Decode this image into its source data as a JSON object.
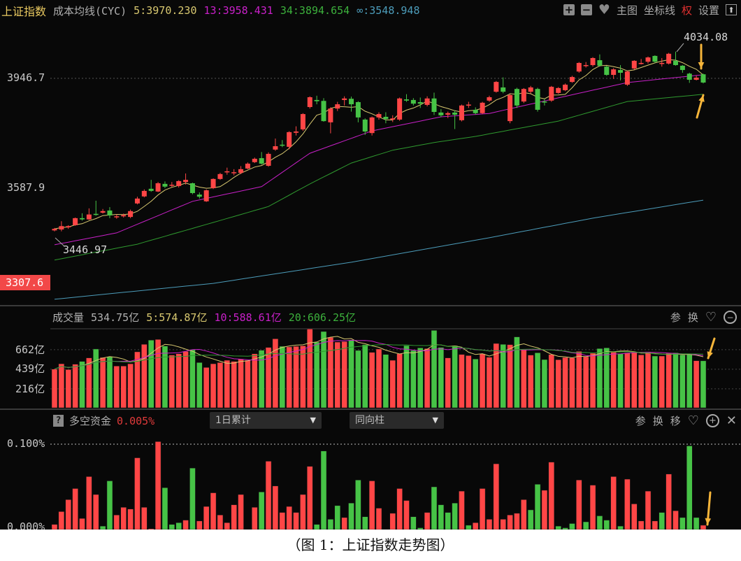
{
  "header": {
    "title": "上证指数",
    "indicator": "成本均线(CYC)",
    "ma5": "5:3970.230",
    "ma13": "13:3958.431",
    "ma34": "34:3894.654",
    "ma_inf": "∞:3548.948",
    "buttons": {
      "zoom_in": "+",
      "zoom_out": "−",
      "main_chart": "主图",
      "crosshair": "坐标线",
      "rights": "权",
      "settings": "设置"
    }
  },
  "price_panel": {
    "axis_labels": [
      "3946.7",
      "3587.9",
      "3307.6"
    ],
    "high_label": "4034.08",
    "low_label": "3446.97"
  },
  "volume_panel": {
    "title": "成交量",
    "current": "534.75亿",
    "ma5": "5:574.87亿",
    "ma10": "10:588.61亿",
    "ma20": "20:606.25亿",
    "axis_labels": [
      "662亿",
      "439亿",
      "216亿"
    ],
    "buttons": {
      "params": "参",
      "switch": "换"
    }
  },
  "fund_panel": {
    "help": "?",
    "title": "多空资金",
    "value": "0.005%",
    "period_select": "1日累计",
    "style_select": "同向柱",
    "axis_labels": [
      "0.100%",
      "0.000%"
    ],
    "buttons": {
      "params": "参",
      "switch": "换",
      "move": "移"
    }
  },
  "caption": "（图 1：上证指数走势图）",
  "colors": {
    "up": "#ff4646",
    "down": "#46c346",
    "ma5": "#d8c870",
    "ma13": "#c820c8",
    "ma34": "#2f9a2f",
    "ma_inf": "#4c9cba",
    "vol_ma5": "#d8c870",
    "vol_ma10": "#c820c8",
    "vol_ma20": "#2f9a2f",
    "arrow": "#f6b53a",
    "rights": "#e03030",
    "title": "#e8c860"
  },
  "chart_data": [
    {
      "type": "candlestick",
      "title": "上证指数",
      "y_ticks": [
        3946.7,
        3587.9,
        3307.6
      ],
      "ohlc": [
        [
          3450,
          3458,
          3446.97,
          3455
        ],
        [
          3453,
          3480,
          3447,
          3464
        ],
        [
          3460,
          3467,
          3455,
          3464
        ],
        [
          3467,
          3492,
          3465,
          3490
        ],
        [
          3490,
          3506,
          3482,
          3486
        ],
        [
          3486,
          3522,
          3484,
          3502
        ],
        [
          3504,
          3547,
          3498,
          3501
        ],
        [
          3508,
          3520,
          3505,
          3513
        ],
        [
          3515,
          3526,
          3490,
          3499
        ],
        [
          3493,
          3502,
          3488,
          3496
        ],
        [
          3496,
          3505,
          3492,
          3500
        ],
        [
          3494,
          3518,
          3490,
          3513
        ],
        [
          3538,
          3560,
          3535,
          3554
        ],
        [
          3561,
          3584,
          3558,
          3579
        ],
        [
          3586,
          3615,
          3576,
          3579
        ],
        [
          3577,
          3608,
          3575,
          3604
        ],
        [
          3602,
          3610,
          3588,
          3593
        ],
        [
          3597,
          3608,
          3592,
          3599
        ],
        [
          3595,
          3614,
          3590,
          3611
        ],
        [
          3608,
          3636,
          3600,
          3615
        ],
        [
          3604,
          3606,
          3568,
          3572
        ],
        [
          3567,
          3574,
          3554,
          3560
        ],
        [
          3545,
          3584,
          3543,
          3581
        ],
        [
          3588,
          3620,
          3585,
          3618
        ],
        [
          3618,
          3638,
          3615,
          3634
        ],
        [
          3640,
          3655,
          3632,
          3643
        ],
        [
          3638,
          3650,
          3630,
          3640
        ],
        [
          3638,
          3660,
          3634,
          3650
        ],
        [
          3652,
          3672,
          3650,
          3668
        ],
        [
          3673,
          3688,
          3670,
          3684
        ],
        [
          3686,
          3706,
          3665,
          3668
        ],
        [
          3661,
          3705,
          3658,
          3700
        ],
        [
          3714,
          3750,
          3710,
          3725
        ],
        [
          3730,
          3745,
          3722,
          3727
        ],
        [
          3723,
          3774,
          3715,
          3771
        ],
        [
          3769,
          3790,
          3760,
          3773
        ],
        [
          3780,
          3833,
          3775,
          3830
        ],
        [
          3853,
          3888,
          3848,
          3885
        ],
        [
          3876,
          3890,
          3862,
          3872
        ],
        [
          3873,
          3882,
          3805,
          3807
        ],
        [
          3803,
          3852,
          3767,
          3848
        ],
        [
          3848,
          3870,
          3840,
          3862
        ],
        [
          3876,
          3888,
          3858,
          3881
        ],
        [
          3880,
          3887,
          3838,
          3862
        ],
        [
          3869,
          3872,
          3803,
          3819
        ],
        [
          3812,
          3816,
          3762,
          3773
        ],
        [
          3768,
          3822,
          3760,
          3819
        ],
        [
          3819,
          3836,
          3812,
          3830
        ],
        [
          3821,
          3836,
          3800,
          3814
        ],
        [
          3812,
          3826,
          3804,
          3816
        ],
        [
          3812,
          3884,
          3808,
          3881
        ],
        [
          3878,
          3895,
          3870,
          3874
        ],
        [
          3876,
          3882,
          3858,
          3864
        ],
        [
          3869,
          3884,
          3850,
          3864
        ],
        [
          3860,
          3888,
          3855,
          3881
        ],
        [
          3881,
          3900,
          3827,
          3837
        ],
        [
          3835,
          3846,
          3820,
          3826
        ],
        [
          3828,
          3838,
          3817,
          3833
        ],
        [
          3835,
          3842,
          3781,
          3828
        ],
        [
          3810,
          3861,
          3806,
          3858
        ],
        [
          3858,
          3870,
          3850,
          3861
        ],
        [
          3844,
          3852,
          3828,
          3833
        ],
        [
          3833,
          3870,
          3830,
          3867
        ],
        [
          3874,
          3890,
          3870,
          3885
        ],
        [
          3903,
          3938,
          3900,
          3935
        ],
        [
          3917,
          3950,
          3898,
          3903
        ],
        [
          3807,
          3895,
          3800,
          3892
        ],
        [
          3912,
          3916,
          3850,
          3858
        ],
        [
          3871,
          3915,
          3866,
          3912
        ],
        [
          3903,
          3922,
          3898,
          3917
        ],
        [
          3912,
          3916,
          3838,
          3844
        ],
        [
          3871,
          3880,
          3858,
          3868
        ],
        [
          3874,
          3922,
          3870,
          3919
        ],
        [
          3899,
          3918,
          3896,
          3915
        ],
        [
          3908,
          3930,
          3905,
          3926
        ],
        [
          3935,
          3955,
          3932,
          3951
        ],
        [
          3969,
          4000,
          3965,
          3997
        ],
        [
          3988,
          4000,
          3982,
          3990
        ],
        [
          3990,
          4016,
          3985,
          4013
        ],
        [
          4006,
          4025,
          3985,
          3988
        ],
        [
          3985,
          3988,
          3955,
          3958
        ],
        [
          3958,
          3980,
          3945,
          3976
        ],
        [
          3974,
          3990,
          3940,
          3965
        ],
        [
          3926,
          3972,
          3922,
          3969
        ],
        [
          3979,
          4006,
          3975,
          4004
        ],
        [
          3995,
          4010,
          3992,
          3997
        ],
        [
          4001,
          4018,
          3995,
          4015
        ],
        [
          4020,
          4022,
          3997,
          4001
        ],
        [
          3995,
          4013,
          3985,
          3997
        ],
        [
          3995,
          4030,
          3992,
          4027
        ],
        [
          4004,
          4034.08,
          3988,
          3990
        ],
        [
          3988,
          3990,
          3965,
          3974
        ],
        [
          3962,
          3965,
          3932,
          3942
        ],
        [
          3942,
          3956,
          3940,
          3949
        ],
        [
          3960,
          3962,
          3930,
          3933
        ]
      ],
      "cost_lines": [
        {
          "name": "5",
          "points": "computed"
        },
        {
          "name": "13",
          "points": [
            [
              0,
              3403
            ],
            [
              9,
              3442
            ],
            [
              20,
              3545
            ],
            [
              30,
              3593
            ],
            [
              37,
              3702
            ],
            [
              46,
              3775
            ],
            [
              56,
              3821
            ],
            [
              63,
              3832
            ],
            [
              73,
              3883
            ],
            [
              83,
              3933
            ],
            [
              94,
              3958.431
            ]
          ]
        },
        {
          "name": "34",
          "points": [
            [
              0,
              3353
            ],
            [
              12,
              3405
            ],
            [
              23,
              3476
            ],
            [
              31,
              3528
            ],
            [
              37,
              3602
            ],
            [
              43,
              3670
            ],
            [
              49,
              3712
            ],
            [
              55,
              3737
            ],
            [
              61,
              3757
            ],
            [
              66,
              3778
            ],
            [
              73,
              3807
            ],
            [
              83,
              3871
            ],
            [
              94,
              3894.654
            ]
          ]
        },
        {
          "name": "∞",
          "points": [
            [
              0,
              3225
            ],
            [
              23,
              3277
            ],
            [
              43,
              3346
            ],
            [
              63,
              3426
            ],
            [
              78,
              3490
            ],
            [
              94,
              3548.948
            ]
          ]
        }
      ]
    },
    {
      "type": "bar",
      "title": "成交量",
      "unit": "亿",
      "y_ticks": [
        662,
        439,
        216
      ],
      "values": [
        440,
        501,
        435,
        496,
        528,
        568,
        669,
        573,
        581,
        475,
        475,
        501,
        637,
        722,
        770,
        778,
        703,
        600,
        615,
        642,
        661,
        515,
        459,
        501,
        515,
        541,
        528,
        555,
        541,
        615,
        655,
        687,
        785,
        700,
        693,
        700,
        706,
        897,
        748,
        868,
        802,
        748,
        754,
        770,
        653,
        719,
        631,
        669,
        607,
        541,
        615,
        708,
        653,
        682,
        674,
        881,
        687,
        568,
        708,
        607,
        594,
        555,
        615,
        575,
        732,
        722,
        719,
        807,
        661,
        600,
        626,
        549,
        607,
        547,
        573,
        568,
        642,
        581,
        621,
        674,
        682,
        634,
        615,
        626,
        634,
        602,
        637,
        589,
        589,
        621,
        626,
        602,
        607,
        536,
        534.75
      ],
      "ma_periods": [
        5,
        10,
        20
      ]
    },
    {
      "type": "bar",
      "title": "多空资金",
      "unit": "%",
      "y_ticks": [
        0.1,
        0.0
      ],
      "values": [
        0.006,
        0.021,
        0.035,
        0.048,
        0.013,
        0.062,
        0.041,
        0.004,
        0.057,
        0.017,
        0.026,
        0.024,
        0.084,
        0.026,
        0.001,
        0.103,
        0.049,
        0.006,
        0.008,
        0.011,
        0.072,
        0.01,
        0.027,
        0.043,
        0.017,
        0.008,
        0.029,
        0.041,
        0,
        0.026,
        0.044,
        0.08,
        0.051,
        0.02,
        0.027,
        0.02,
        0.041,
        0.074,
        0.006,
        0.092,
        0.012,
        0.028,
        0.014,
        0.031,
        0.058,
        0.015,
        0.057,
        0.025,
        0,
        0.019,
        0.048,
        0.034,
        0.015,
        0.002,
        0.02,
        0.05,
        0.029,
        0.02,
        0.031,
        0.045,
        0.005,
        0.008,
        0.048,
        0.012,
        0.077,
        0.012,
        0.017,
        0.019,
        0.035,
        0.023,
        0.053,
        0.046,
        0.079,
        0.004,
        0.002,
        0.007,
        0.058,
        0.009,
        0.052,
        0.016,
        0.011,
        0.062,
        0.004,
        0.059,
        0.03,
        0.01,
        0.045,
        0.01,
        0.02,
        0.065,
        0.022,
        0.014,
        0.098,
        0.014,
        0.005
      ],
      "colors": "rrrrrrrggrrrrrrrgggrgrrrrrrrrrgrrrrrrrggggrgggrrrrrrggrggggrgrrrrrrrrggrrgggrgrggrgrrrrrgrrgggr"
    }
  ]
}
